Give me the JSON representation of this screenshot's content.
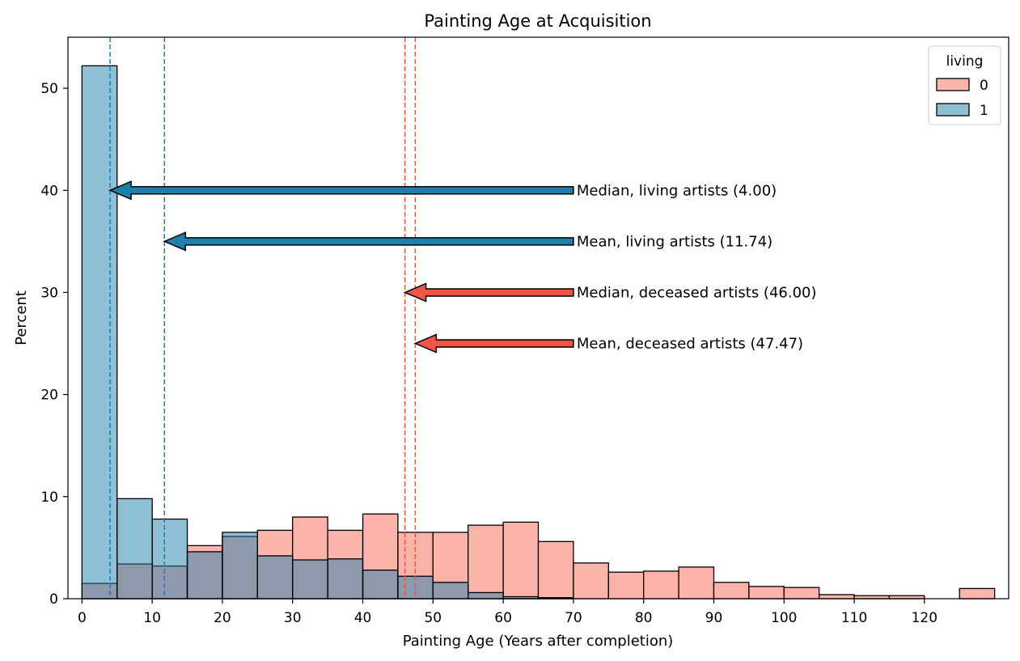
{
  "chart_data": {
    "type": "bar",
    "title": "Painting Age at Acquisition",
    "xlabel": "Painting Age (Years after completion)",
    "ylabel": "Percent",
    "xlim": [
      -2,
      132
    ],
    "ylim": [
      0,
      55
    ],
    "xticks": [
      0,
      10,
      20,
      30,
      40,
      50,
      60,
      70,
      80,
      90,
      100,
      110,
      120
    ],
    "yticks": [
      0,
      10,
      20,
      30,
      40,
      50
    ],
    "bin_width": 5,
    "bin_starts": [
      0,
      5,
      10,
      15,
      20,
      25,
      30,
      35,
      40,
      45,
      50,
      55,
      60,
      65,
      70,
      75,
      80,
      85,
      90,
      95,
      100,
      105,
      110,
      115,
      120,
      125
    ],
    "grid": false,
    "legend": {
      "title": "living",
      "placement": "top-right"
    },
    "series": [
      {
        "name": "0",
        "color": "#fa8072",
        "values": [
          1.5,
          3.4,
          3.2,
          5.2,
          6.1,
          6.7,
          8.0,
          6.7,
          8.3,
          6.5,
          6.5,
          7.2,
          7.5,
          5.6,
          3.5,
          2.6,
          2.7,
          3.1,
          1.6,
          1.2,
          1.1,
          0.4,
          0.3,
          0.3,
          0.0,
          1.0
        ]
      },
      {
        "name": "1",
        "color": "#1f7fab",
        "values": [
          52.2,
          9.8,
          7.8,
          4.6,
          6.5,
          4.2,
          3.8,
          3.9,
          2.8,
          2.2,
          1.6,
          0.6,
          0.2,
          0.1,
          0,
          0,
          0,
          0,
          0,
          0,
          0,
          0,
          0,
          0,
          0,
          0
        ]
      }
    ],
    "reference_lines": [
      {
        "x": 4.0,
        "color": "#1f7fab"
      },
      {
        "x": 11.74,
        "color": "#1f7fab"
      },
      {
        "x": 46.0,
        "color": "#f05545"
      },
      {
        "x": 47.47,
        "color": "#f05545"
      }
    ],
    "annotations": [
      {
        "text": "Median, living artists (4.00)",
        "x": 4.0,
        "y": 40,
        "text_x": 70,
        "color": "#1f7fab"
      },
      {
        "text": "Mean, living artists (11.74)",
        "x": 11.74,
        "y": 35,
        "text_x": 70,
        "color": "#1f7fab"
      },
      {
        "text": "Median, deceased artists (46.00)",
        "x": 46.0,
        "y": 30,
        "text_x": 70,
        "color": "#f05545"
      },
      {
        "text": "Mean, deceased artists (47.47)",
        "x": 47.47,
        "y": 25,
        "text_x": 70,
        "color": "#f05545"
      }
    ]
  }
}
